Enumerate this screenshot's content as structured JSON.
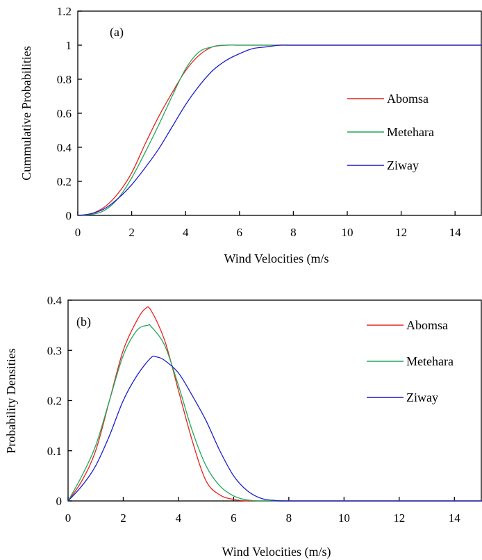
{
  "colors": {
    "Abomsa": "#e8201c",
    "Metehara": "#1fa85a",
    "Ziway": "#1c1ccf"
  },
  "chart_data": [
    {
      "type": "line",
      "panel_label": "(a)",
      "xlabel": "Wind Velocities (m/s",
      "ylabel": "Cummulative Probabilities",
      "xlim": [
        0,
        15
      ],
      "ylim": [
        0,
        1.2
      ],
      "xticks": [
        0,
        2,
        4,
        6,
        8,
        10,
        12,
        14
      ],
      "yticks": [
        0,
        0.2,
        0.4,
        0.6,
        0.8,
        1,
        1.2
      ],
      "ytick_labels": [
        "0",
        "0.2",
        "0.4",
        "0.6",
        "0.8",
        "1",
        "1.2"
      ],
      "legend": "right",
      "series": [
        {
          "name": "Abomsa",
          "x": [
            0,
            0.5,
            1,
            1.5,
            2,
            2.5,
            3,
            3.5,
            4,
            4.5,
            5,
            5.5,
            6,
            7,
            8,
            10,
            12,
            15
          ],
          "y": [
            0,
            0.01,
            0.05,
            0.13,
            0.25,
            0.42,
            0.58,
            0.72,
            0.85,
            0.94,
            0.99,
            1,
            1,
            1,
            1,
            1,
            1,
            1
          ]
        },
        {
          "name": "Metehara",
          "x": [
            0,
            0.5,
            1,
            1.5,
            2,
            2.5,
            3,
            3.5,
            4,
            4.5,
            5,
            5.5,
            6,
            7,
            8,
            10,
            12,
            15
          ],
          "y": [
            0,
            0.005,
            0.03,
            0.1,
            0.22,
            0.37,
            0.53,
            0.7,
            0.86,
            0.96,
            0.99,
            1,
            1,
            1,
            1,
            1,
            1,
            1
          ]
        },
        {
          "name": "Ziway",
          "x": [
            0,
            0.5,
            1,
            1.5,
            2,
            2.5,
            3,
            3.5,
            4,
            4.5,
            5,
            5.5,
            6,
            6.5,
            7,
            7.5,
            8,
            10,
            12,
            15
          ],
          "y": [
            0,
            0.01,
            0.04,
            0.1,
            0.18,
            0.28,
            0.39,
            0.52,
            0.65,
            0.76,
            0.85,
            0.91,
            0.95,
            0.98,
            0.99,
            1,
            1,
            1,
            1,
            1
          ]
        }
      ]
    },
    {
      "type": "line",
      "panel_label": "(b)",
      "xlabel": "Wind Velocities (m/s)",
      "ylabel": "Probability Densities",
      "xlim": [
        0,
        15
      ],
      "ylim": [
        0,
        0.4
      ],
      "xticks": [
        0,
        2,
        4,
        6,
        8,
        10,
        12,
        14
      ],
      "yticks": [
        0,
        0.1,
        0.2,
        0.3,
        0.4
      ],
      "ytick_labels": [
        "0",
        "0.1",
        "0.2",
        "0.3",
        "0.4"
      ],
      "legend": "top-right",
      "series": [
        {
          "name": "Abomsa",
          "x": [
            0,
            0.5,
            1,
            1.5,
            2,
            2.5,
            2.8,
            3,
            3.5,
            4,
            4.5,
            5,
            5.5,
            6,
            6.5,
            7,
            8,
            10,
            12,
            15
          ],
          "y": [
            0,
            0.04,
            0.1,
            0.2,
            0.3,
            0.36,
            0.383,
            0.38,
            0.32,
            0.22,
            0.12,
            0.04,
            0.012,
            0.003,
            0,
            0,
            0,
            0,
            0,
            0
          ]
        },
        {
          "name": "Metehara",
          "x": [
            0,
            0.5,
            1,
            1.5,
            2,
            2.5,
            2.9,
            3,
            3.5,
            4,
            4.5,
            5,
            5.5,
            6,
            6.5,
            7,
            8,
            10,
            12,
            15
          ],
          "y": [
            0,
            0.05,
            0.11,
            0.2,
            0.29,
            0.34,
            0.35,
            0.348,
            0.31,
            0.23,
            0.14,
            0.07,
            0.03,
            0.01,
            0.002,
            0,
            0,
            0,
            0,
            0
          ]
        },
        {
          "name": "Ziway",
          "x": [
            0,
            0.5,
            1,
            1.5,
            2,
            2.5,
            3,
            3.2,
            3.5,
            4,
            4.5,
            5,
            5.5,
            6,
            6.5,
            7,
            7.5,
            8,
            10,
            12,
            15
          ],
          "y": [
            0,
            0.03,
            0.07,
            0.13,
            0.2,
            0.25,
            0.285,
            0.287,
            0.28,
            0.255,
            0.21,
            0.16,
            0.1,
            0.05,
            0.02,
            0.005,
            0.001,
            0,
            0,
            0,
            0
          ]
        }
      ]
    }
  ]
}
